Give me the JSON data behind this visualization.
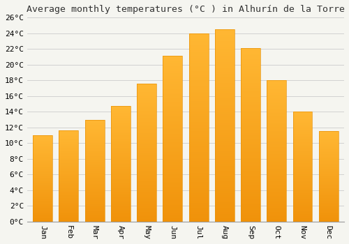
{
  "title": "Average monthly temperatures (°C ) in Alhurín de la Torre",
  "months": [
    "Jan",
    "Feb",
    "Mar",
    "Apr",
    "May",
    "Jun",
    "Jul",
    "Aug",
    "Sep",
    "Oct",
    "Nov",
    "Dec"
  ],
  "values": [
    11.0,
    11.6,
    13.0,
    14.7,
    17.6,
    21.1,
    24.0,
    24.5,
    22.1,
    18.0,
    14.0,
    11.5
  ],
  "bar_color_top": "#FFB733",
  "bar_color_bottom": "#F0920A",
  "bar_edge_color": "#E8920A",
  "background_color": "#F5F5F0",
  "grid_color": "#CCCCCC",
  "ylim": [
    0,
    26
  ],
  "ytick_step": 2,
  "title_fontsize": 9.5,
  "tick_fontsize": 8,
  "font_family": "monospace",
  "bar_width": 0.75
}
